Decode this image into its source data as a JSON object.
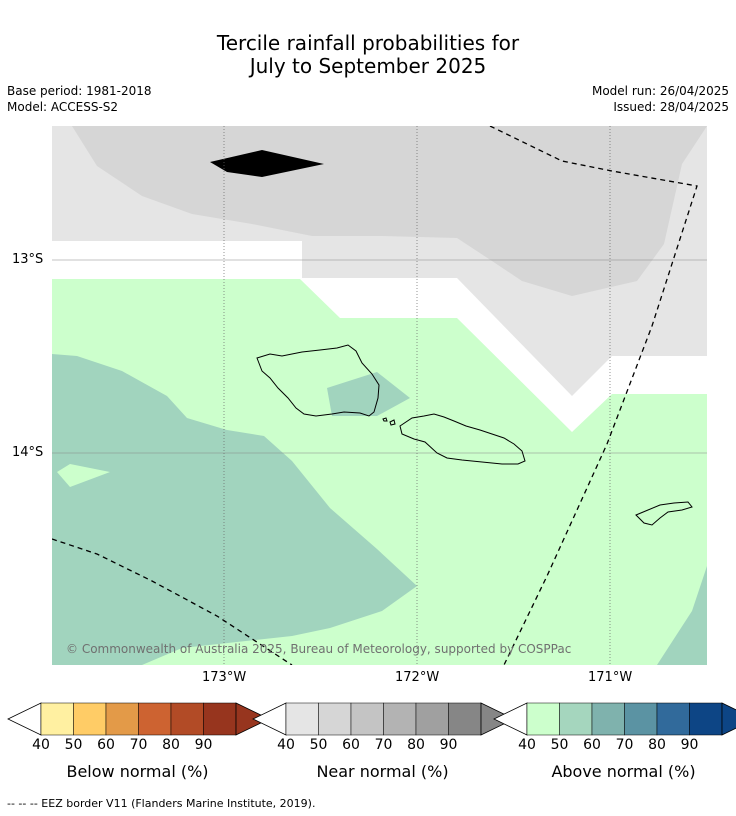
{
  "title_line1": "Tercile rainfall probabilities for",
  "title_line2": "July to September 2025",
  "meta": {
    "base_period": "Base period: 1981-2018",
    "model": "Model: ACCESS-S2",
    "model_run": "Model run: 26/04/2025",
    "issued": "Issued: 28/04/2025"
  },
  "map": {
    "lat_ticks": [
      "13°S",
      "14°S"
    ],
    "lon_ticks": [
      "173°W",
      "172°W",
      "171°W"
    ],
    "copyright": "© Commonwealth of Australia 2025, Bureau of Meteorology, supported by COSPPac",
    "colors": {
      "near_40": "#e5e5e5",
      "near_50": "#d6d6d6",
      "above_40": "#ccffcc",
      "above_50": "#a1d4be"
    }
  },
  "colorbars": [
    {
      "label": "Below normal (%)",
      "ticks": [
        "40",
        "50",
        "60",
        "70",
        "80",
        "90"
      ],
      "colors": [
        "#fff0a1",
        "#ffcc66",
        "#e39a48",
        "#cd6331",
        "#b24b26",
        "#97351e"
      ]
    },
    {
      "label": "Near normal (%)",
      "ticks": [
        "40",
        "50",
        "60",
        "70",
        "80",
        "90"
      ],
      "colors": [
        "#e5e5e5",
        "#d6d6d6",
        "#c4c4c4",
        "#b3b3b3",
        "#a0a0a0",
        "#868686"
      ]
    },
    {
      "label": "Above normal (%)",
      "ticks": [
        "40",
        "50",
        "60",
        "70",
        "80",
        "90"
      ],
      "colors": [
        "#ccffcc",
        "#a5d6be",
        "#7fb2ad",
        "#5b93a3",
        "#316a9b",
        "#0d4585"
      ]
    }
  ],
  "footnote": "-- -- -- EEZ border V11 (Flanders Marine Institute, 2019)."
}
